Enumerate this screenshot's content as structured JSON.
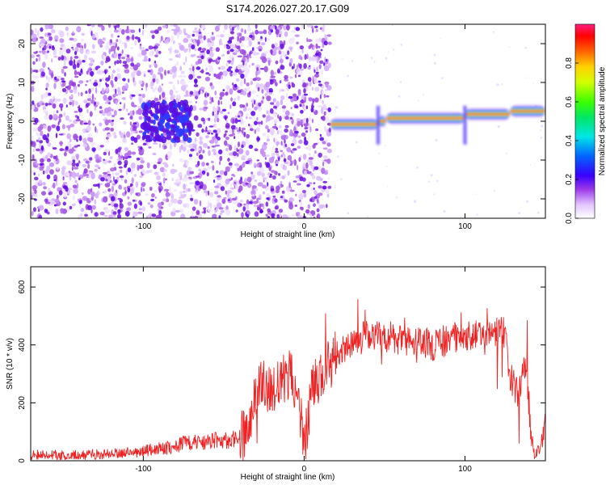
{
  "title": "S174.2026.027.20.17.G09",
  "chart_data": [
    {
      "type": "heatmap",
      "xlabel": "Height of straight line (km)",
      "ylabel": "Frequency (Hz)",
      "xlim": [
        -170,
        150
      ],
      "ylim": [
        -25,
        25
      ],
      "xticks": [
        -100,
        0,
        100
      ],
      "yticks": [
        -20,
        -10,
        0,
        10,
        20
      ],
      "colorbar": {
        "label": "Normalized spectral amplitude",
        "range": [
          0,
          1
        ],
        "ticks": [
          0.0,
          0.2,
          0.4,
          0.6,
          0.8
        ]
      },
      "noise_region_x": [
        -170,
        16
      ],
      "ridge": [
        {
          "x": [
            16,
            46
          ],
          "freq": -0.8
        },
        {
          "x": [
            46,
            51
          ],
          "freq": 0.0
        },
        {
          "x": [
            51,
            100
          ],
          "freq": 0.8
        },
        {
          "x": [
            100,
            128
          ],
          "freq": 1.8
        },
        {
          "x": [
            128,
            150
          ],
          "freq": 2.6
        }
      ]
    },
    {
      "type": "line",
      "xlabel": "Height of straight line (km)",
      "ylabel": "SNR (10 * v/v)",
      "xlim": [
        -170,
        150
      ],
      "ylim": [
        0,
        670
      ],
      "xticks": [
        -100,
        0,
        100
      ],
      "yticks": [
        0,
        200,
        400,
        600
      ],
      "series": [
        {
          "name": "SNR",
          "color": "#ee2222",
          "x": [
            -170,
            -140,
            -110,
            -85,
            -75,
            -55,
            -40,
            -33,
            -30,
            -25,
            -20,
            -15,
            -10,
            -5,
            0,
            5,
            10,
            15,
            20,
            25,
            30,
            40,
            50,
            60,
            70,
            80,
            90,
            100,
            105,
            110,
            120,
            125,
            128,
            132,
            135,
            138,
            141,
            143,
            145,
            148,
            150
          ],
          "y": [
            20,
            20,
            28,
            45,
            60,
            70,
            75,
            120,
            240,
            280,
            220,
            270,
            300,
            260,
            60,
            240,
            300,
            330,
            360,
            390,
            420,
            440,
            430,
            420,
            410,
            400,
            420,
            440,
            420,
            450,
            450,
            440,
            300,
            240,
            280,
            330,
            100,
            20,
            30,
            70,
            120
          ]
        }
      ]
    }
  ]
}
